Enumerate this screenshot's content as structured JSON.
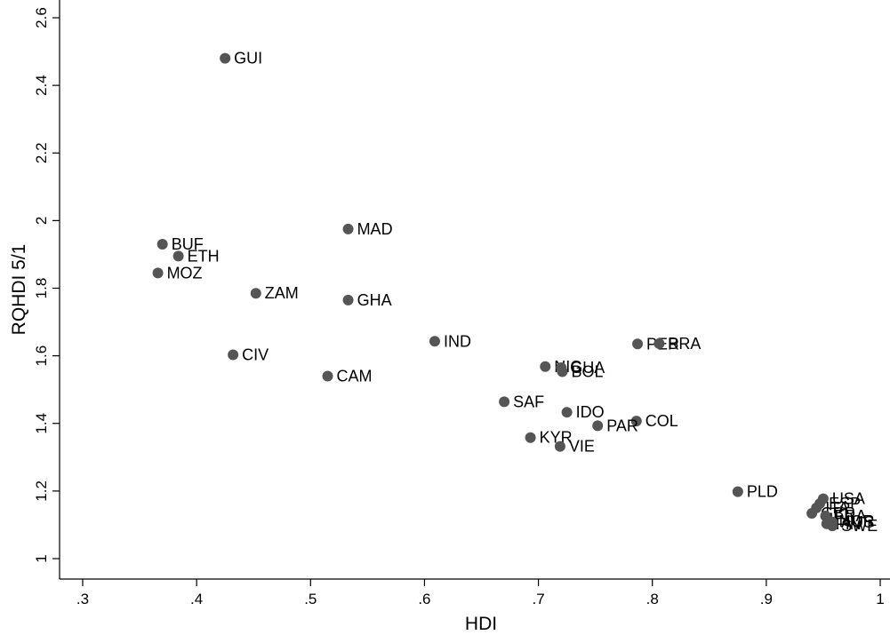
{
  "chart_data": {
    "type": "scatter",
    "xlabel": "HDI",
    "ylabel": "RQHDI 5/1",
    "xlim": [
      0.3,
      1.0
    ],
    "ylim": [
      1.0,
      2.6
    ],
    "x_ticks": [
      0.3,
      0.4,
      0.5,
      0.6,
      0.7,
      0.8,
      0.9,
      1.0
    ],
    "x_tick_labels": [
      ".3",
      ".4",
      ".5",
      ".6",
      ".7",
      ".8",
      ".9",
      "1"
    ],
    "y_ticks": [
      1.0,
      1.2,
      1.4,
      1.6,
      1.8,
      2.0,
      2.2,
      2.4,
      2.6
    ],
    "y_tick_labels": [
      "1",
      "1.2",
      "1.4",
      "1.6",
      "1.8",
      "2",
      "2.2",
      "2.4",
      "2.6"
    ],
    "grid": false,
    "marker_color": "#555555",
    "points": [
      {
        "label": "GUI",
        "x": 0.425,
        "y": 2.48
      },
      {
        "label": "BUF",
        "x": 0.37,
        "y": 1.93
      },
      {
        "label": "ETH",
        "x": 0.384,
        "y": 1.895
      },
      {
        "label": "MOZ",
        "x": 0.366,
        "y": 1.845
      },
      {
        "label": "MAD",
        "x": 0.533,
        "y": 1.975
      },
      {
        "label": "ZAM",
        "x": 0.452,
        "y": 1.785
      },
      {
        "label": "GHA",
        "x": 0.533,
        "y": 1.765
      },
      {
        "label": "CIV",
        "x": 0.432,
        "y": 1.603
      },
      {
        "label": "CAM",
        "x": 0.515,
        "y": 1.54
      },
      {
        "label": "IND",
        "x": 0.609,
        "y": 1.643
      },
      {
        "label": "NIC",
        "x": 0.706,
        "y": 1.568
      },
      {
        "label": "GUA",
        "x": 0.72,
        "y": 1.565
      },
      {
        "label": "BOL",
        "x": 0.721,
        "y": 1.553
      },
      {
        "label": "PER",
        "x": 0.787,
        "y": 1.635
      },
      {
        "label": "BRA",
        "x": 0.806,
        "y": 1.636
      },
      {
        "label": "SAF",
        "x": 0.67,
        "y": 1.464
      },
      {
        "label": "IDO",
        "x": 0.725,
        "y": 1.433
      },
      {
        "label": "COL",
        "x": 0.786,
        "y": 1.407
      },
      {
        "label": "PAR",
        "x": 0.752,
        "y": 1.393
      },
      {
        "label": "KYR",
        "x": 0.693,
        "y": 1.358
      },
      {
        "label": "VIE",
        "x": 0.719,
        "y": 1.332
      },
      {
        "label": "PLD",
        "x": 0.875,
        "y": 1.198
      },
      {
        "label": "USA",
        "x": 0.95,
        "y": 1.177
      },
      {
        "label": "ESP",
        "x": 0.947,
        "y": 1.163
      },
      {
        "label": "ITA",
        "x": 0.944,
        "y": 1.15
      },
      {
        "label": "GBR",
        "x": 0.94,
        "y": 1.134
      },
      {
        "label": "FRA",
        "x": 0.952,
        "y": 1.126
      },
      {
        "label": "NOR",
        "x": 0.956,
        "y": 1.11
      },
      {
        "label": "FIN",
        "x": 0.953,
        "y": 1.103
      },
      {
        "label": "AUS",
        "x": 0.958,
        "y": 1.108
      },
      {
        "label": "SWE",
        "x": 0.958,
        "y": 1.097
      }
    ]
  }
}
